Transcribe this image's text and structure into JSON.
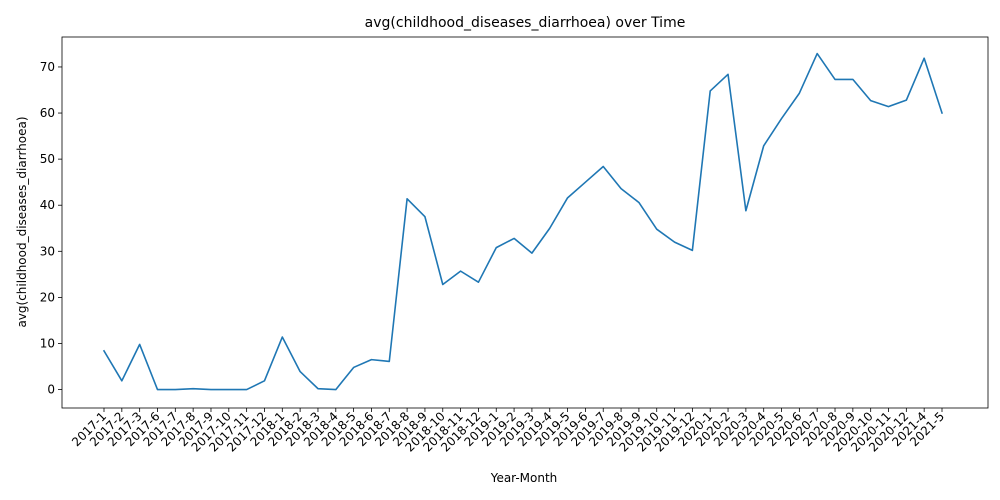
{
  "chart_data": {
    "type": "line",
    "title": "avg(childhood_diseases_diarrhoea) over Time",
    "xlabel": "Year-Month",
    "ylabel": "avg(childhood_diseases_diarrhoea)",
    "ylim": [
      -4,
      76.5
    ],
    "yticks": [
      0,
      10,
      20,
      30,
      40,
      50,
      60,
      70
    ],
    "grid": false,
    "color": "#1f77b4",
    "x": [
      "2017-1",
      "2017-2",
      "2017-3",
      "2017-6",
      "2017-7",
      "2017-8",
      "2017-9",
      "2017-10",
      "2017-11",
      "2017-12",
      "2018-1",
      "2018-2",
      "2018-3",
      "2018-4",
      "2018-5",
      "2018-6",
      "2018-7",
      "2018-8",
      "2018-9",
      "2018-10",
      "2018-11",
      "2018-12",
      "2019-1",
      "2019-2",
      "2019-3",
      "2019-4",
      "2019-5",
      "2019-6",
      "2019-7",
      "2019-8",
      "2019-9",
      "2019-10",
      "2019-11",
      "2019-12",
      "2020-1",
      "2020-2",
      "2020-3",
      "2020-4",
      "2020-5",
      "2020-6",
      "2020-7",
      "2020-8",
      "2020-9",
      "2020-10",
      "2020-11",
      "2020-12",
      "2021-4",
      "2021-5"
    ],
    "values": [
      8.4,
      1.9,
      9.8,
      0.0,
      0.0,
      0.2,
      0.0,
      0.0,
      0.0,
      1.9,
      11.4,
      3.9,
      0.2,
      0.0,
      4.8,
      6.5,
      6.1,
      41.4,
      37.5,
      22.8,
      25.7,
      23.3,
      30.8,
      32.8,
      29.6,
      35.0,
      41.6,
      45.0,
      48.4,
      43.6,
      40.6,
      34.8,
      32.0,
      30.2,
      64.8,
      68.4,
      38.8,
      52.9,
      58.8,
      64.3,
      72.9,
      67.3,
      67.3,
      62.7,
      61.4,
      62.8,
      71.9,
      60.0
    ]
  }
}
